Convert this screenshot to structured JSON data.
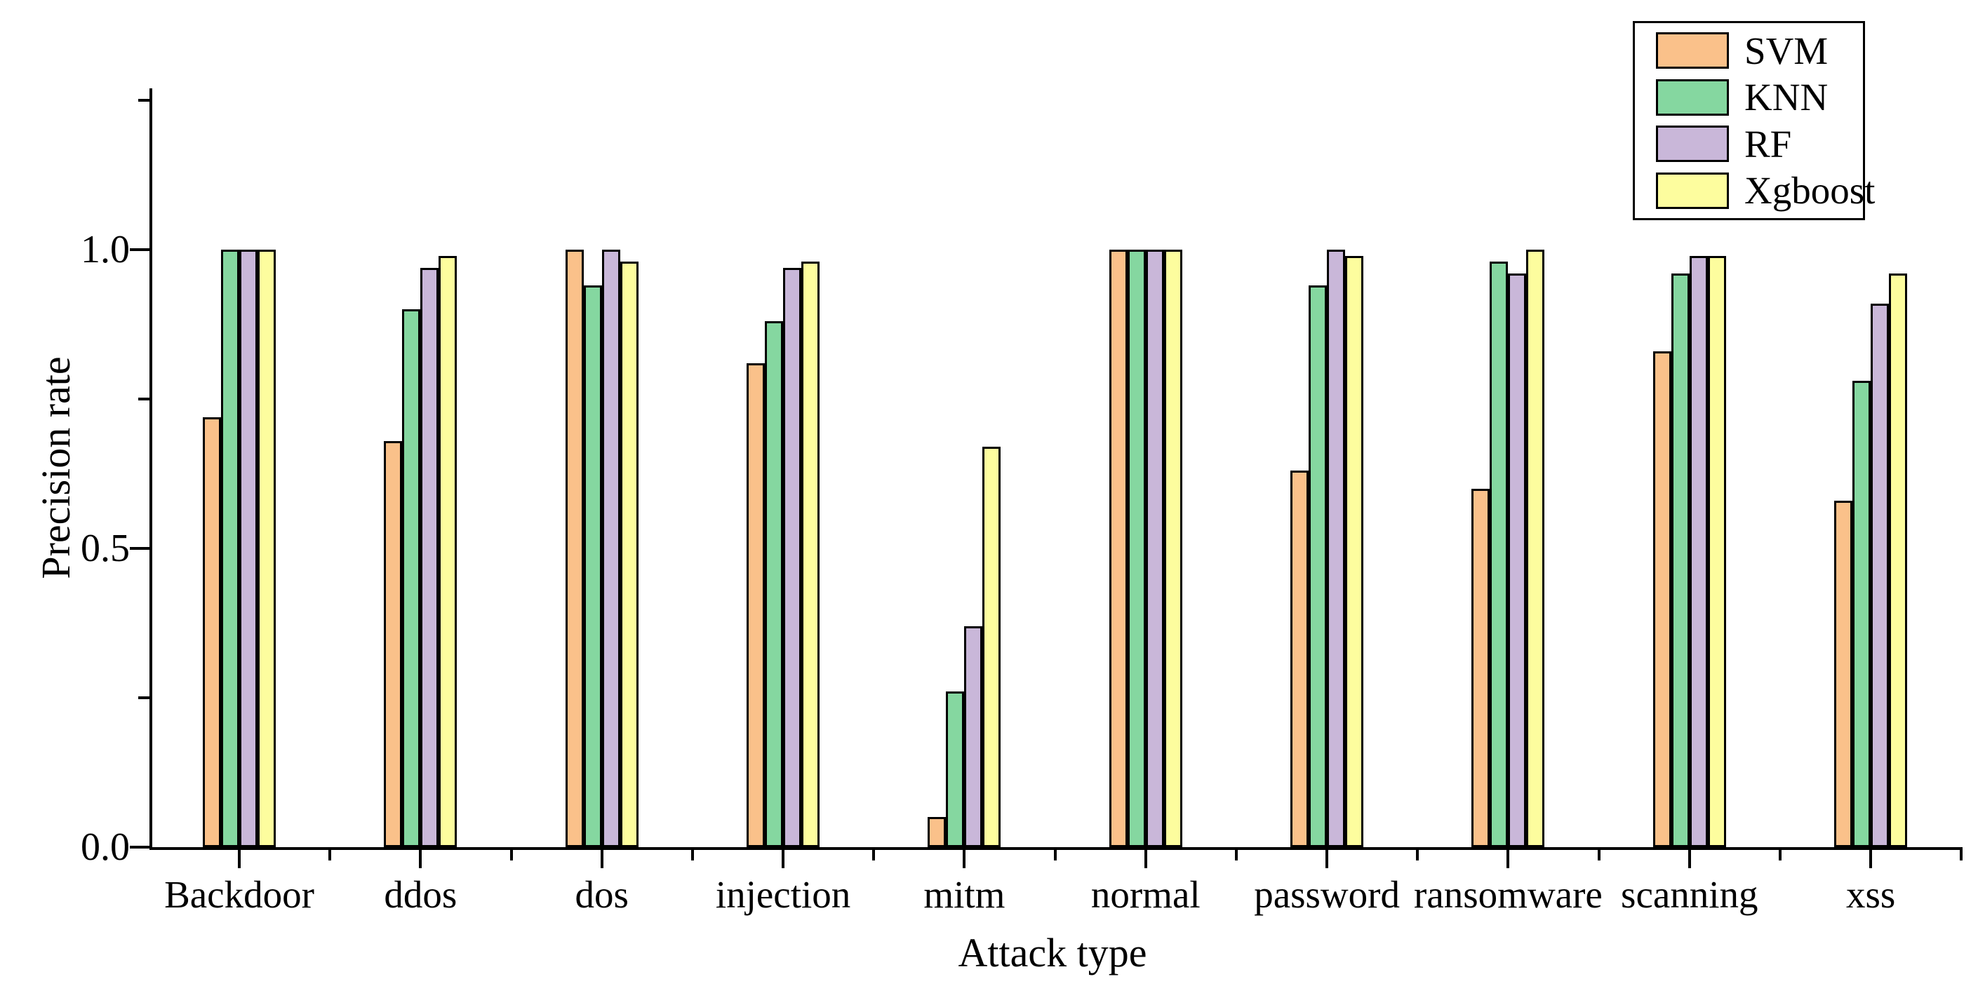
{
  "chart_data": {
    "type": "bar",
    "title": "",
    "xlabel": "Attack type",
    "ylabel": "Precision rate",
    "categories": [
      "Backdoor",
      "ddos",
      "dos",
      "injection",
      "mitm",
      "normal",
      "password",
      "ransomware",
      "scanning",
      "xss"
    ],
    "series": [
      {
        "name": "SVM",
        "color": "#FAC18A",
        "values": [
          0.72,
          0.68,
          1.0,
          0.81,
          0.05,
          1.0,
          0.63,
          0.6,
          0.83,
          0.58
        ]
      },
      {
        "name": "KNN",
        "color": "#85D7A0",
        "values": [
          1.0,
          0.9,
          0.94,
          0.88,
          0.26,
          1.0,
          0.94,
          0.98,
          0.96,
          0.78
        ]
      },
      {
        "name": "RF",
        "color": "#C9B7D9",
        "values": [
          1.0,
          0.97,
          1.0,
          0.97,
          0.37,
          1.0,
          1.0,
          0.96,
          0.99,
          0.91
        ]
      },
      {
        "name": "Xgboost",
        "color": "#FDFD9E",
        "values": [
          1.0,
          0.99,
          0.98,
          0.98,
          0.67,
          1.0,
          0.99,
          1.0,
          0.99,
          0.96
        ]
      }
    ],
    "ylim": [
      0,
      1.27
    ],
    "yticks_major": [
      "0.0",
      "0.5",
      "1.0"
    ],
    "yticks_major_values": [
      0.0,
      0.5,
      1.0
    ],
    "yticks_minor_values": [
      0.25,
      0.75,
      1.25
    ],
    "bar_edge_color": "#000000",
    "grid": false,
    "legend_position": "top-right"
  }
}
